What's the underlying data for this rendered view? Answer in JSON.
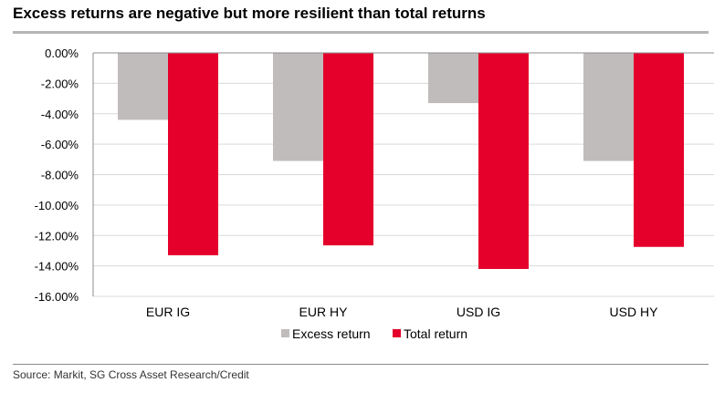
{
  "header": {
    "title": "Excess returns are negative but more resilient than total returns"
  },
  "footer": {
    "source": "Source: Markit, SG Cross Asset Research/Credit"
  },
  "colors": {
    "excess": "#c0bcbc",
    "total": "#e4002b",
    "grid": "#d9d9d9",
    "axis": "#8c8c8c"
  },
  "chart_data": {
    "type": "bar",
    "title": "Excess returns are negative but more resilient than total returns",
    "xlabel": "",
    "ylabel": "",
    "categories": [
      "EUR IG",
      "EUR HY",
      "USD IG",
      "USD HY"
    ],
    "series": [
      {
        "name": "Excess return",
        "values": [
          -4.4,
          -7.1,
          -3.3,
          -7.1
        ]
      },
      {
        "name": "Total return",
        "values": [
          -13.3,
          -12.65,
          -14.2,
          -12.75
        ]
      }
    ],
    "ylim": [
      -16,
      0
    ],
    "yticks": [
      0,
      -2,
      -4,
      -6,
      -8,
      -10,
      -12,
      -14,
      -16
    ],
    "ytick_labels": [
      "0.00%",
      "-2.00%",
      "-4.00%",
      "-6.00%",
      "-8.00%",
      "-10.00%",
      "-12.00%",
      "-14.00%",
      "-16.00%"
    ],
    "grid": true,
    "legend": "bottom-center"
  }
}
